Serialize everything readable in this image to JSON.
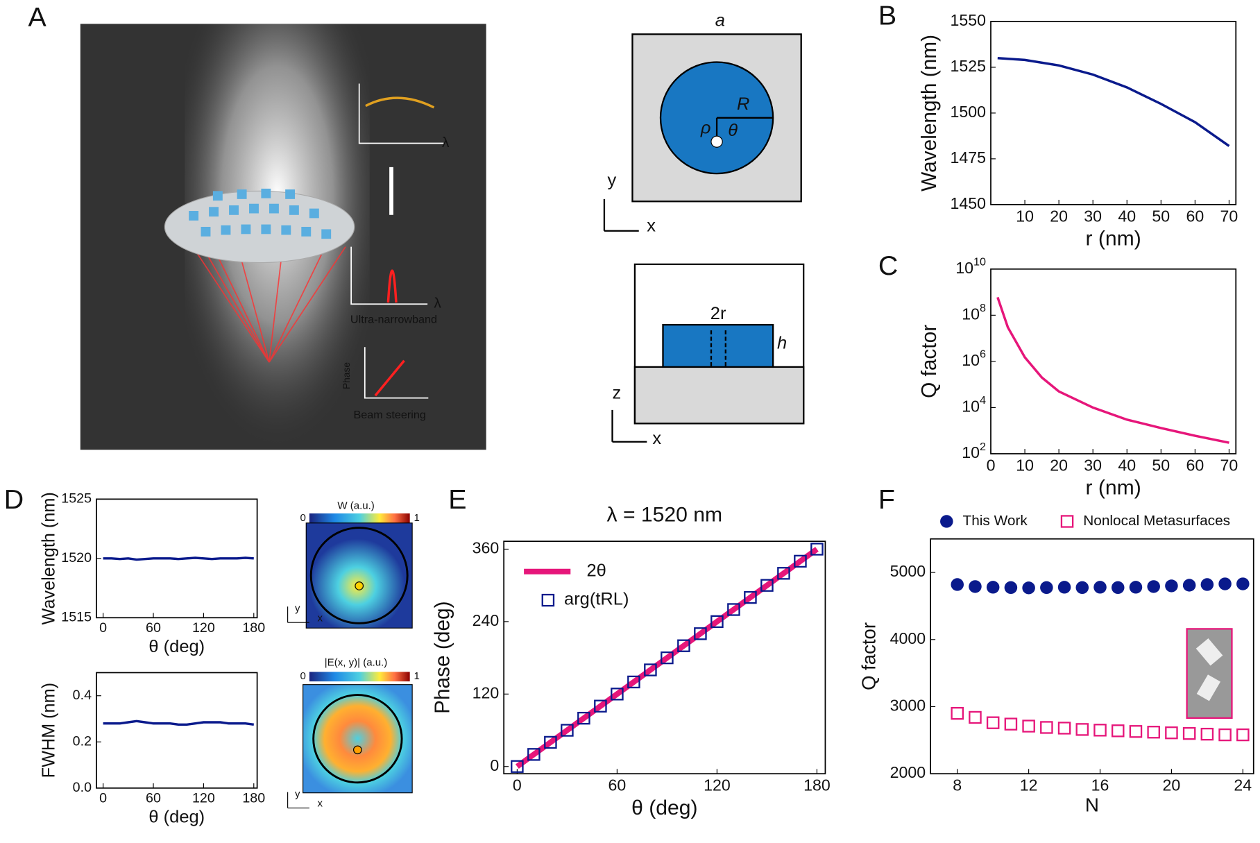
{
  "panels": {
    "a": "A",
    "b": "B",
    "c": "C",
    "d": "D",
    "e": "E",
    "f": "F"
  },
  "illustration": {
    "lambda1": "λ",
    "lambda2": "λ",
    "narrow": "Ultra-narrowband",
    "phase": "Phase",
    "steer": "Beam steering"
  },
  "schematic": {
    "a": "a",
    "R": "R",
    "rho": "ρ",
    "theta": "θ",
    "y1": "y",
    "x1": "x",
    "tworr": "2r",
    "h": "h",
    "z": "z",
    "x2": "x"
  },
  "maps": {
    "w": "W (a.u.)",
    "w0": "0",
    "w1": "1",
    "e": "|E(x, y)| (a.u.)",
    "e0": "0",
    "e1": "1",
    "y1": "y",
    "x1": "x",
    "y2": "y",
    "x2": "x"
  },
  "chart_data": [
    {
      "type": "line",
      "xlabel": "r (nm)",
      "ylabel": "Wavelength (nm)",
      "xlim": [
        0,
        72
      ],
      "ylim": [
        1450,
        1550
      ],
      "xticks": [
        10,
        20,
        30,
        40,
        50,
        60,
        70
      ],
      "yticks": [
        1450,
        1475,
        1500,
        1525,
        1550
      ],
      "series": [
        {
          "color": "#0a1a8c",
          "marker": "line",
          "x": [
            2,
            10,
            20,
            30,
            40,
            50,
            60,
            70
          ],
          "values": [
            1530,
            1529,
            1526,
            1521,
            1514,
            1505,
            1495,
            1482
          ]
        }
      ]
    },
    {
      "type": "line",
      "xlabel": "r (nm)",
      "ylabel": "Q factor",
      "log_y": true,
      "xlim": [
        0,
        72
      ],
      "ylim": [
        100,
        10000000000
      ],
      "xticks": [
        0,
        10,
        20,
        30,
        40,
        50,
        60,
        70
      ],
      "yticks": [
        {
          "value": 100,
          "label": "10^2"
        },
        {
          "value": 10000,
          "label": "10^4"
        },
        {
          "value": 1000000,
          "label": "10^6"
        },
        {
          "value": 100000000,
          "label": "10^8"
        },
        {
          "value": 10000000000,
          "label": "10^10"
        }
      ],
      "series": [
        {
          "color": "#e6167a",
          "marker": "line",
          "x": [
            2,
            5,
            10,
            15,
            20,
            30,
            40,
            50,
            60,
            70
          ],
          "values": [
            600000000,
            30000000,
            1500000,
            200000,
            50000,
            10000,
            3000,
            1300,
            600,
            300
          ]
        }
      ]
    },
    {
      "type": "line",
      "xlabel": "θ (deg)",
      "ylabel": "Wavelength (nm)",
      "xlim": [
        -8,
        184
      ],
      "ylim": [
        1515,
        1525
      ],
      "xticks": [
        0,
        60,
        120,
        180
      ],
      "yticks": [
        1515,
        1520,
        1525
      ],
      "series": [
        {
          "color": "#0a1a8c",
          "marker": "line",
          "x": [
            0,
            10,
            20,
            30,
            40,
            50,
            60,
            70,
            80,
            90,
            100,
            110,
            120,
            130,
            140,
            150,
            160,
            170,
            180
          ],
          "values": [
            1520,
            1520,
            1519.95,
            1520,
            1519.9,
            1519.95,
            1520,
            1520,
            1520,
            1519.95,
            1520,
            1520.05,
            1520,
            1519.95,
            1520,
            1520,
            1520,
            1520.05,
            1520
          ]
        }
      ]
    },
    {
      "type": "line",
      "xlabel": "θ (deg)",
      "ylabel": "FWHM (nm)",
      "xlim": [
        -8,
        184
      ],
      "ylim": [
        0,
        0.5
      ],
      "xticks": [
        0,
        60,
        120,
        180
      ],
      "yticks": [
        {
          "value": 0,
          "label": "0.0"
        },
        0.2,
        0.4
      ],
      "series": [
        {
          "color": "#0a1a8c",
          "marker": "line",
          "x": [
            0,
            10,
            20,
            30,
            40,
            50,
            60,
            70,
            80,
            90,
            100,
            110,
            120,
            130,
            140,
            150,
            160,
            170,
            180
          ],
          "values": [
            0.28,
            0.28,
            0.28,
            0.285,
            0.29,
            0.285,
            0.28,
            0.28,
            0.28,
            0.275,
            0.275,
            0.28,
            0.285,
            0.285,
            0.285,
            0.28,
            0.28,
            0.28,
            0.275
          ]
        }
      ]
    },
    {
      "type": "line",
      "title": "λ = 1520 nm",
      "xlabel": "θ (deg)",
      "ylabel": "Phase (deg)",
      "xlim": [
        -8,
        185
      ],
      "ylim": [
        -12,
        373
      ],
      "xticks": [
        0,
        60,
        120,
        180
      ],
      "yticks": [
        0,
        120,
        240,
        360
      ],
      "legend": "upper left",
      "series": [
        {
          "name": "2θ",
          "color": "#e6167a",
          "marker": "line",
          "x": [
            0,
            180
          ],
          "values": [
            0,
            360
          ]
        },
        {
          "name": "arg(tRL)",
          "color": "#0a1a8c",
          "marker": "square",
          "x": [
            0,
            10,
            20,
            30,
            40,
            50,
            60,
            70,
            80,
            90,
            100,
            110,
            120,
            130,
            140,
            150,
            160,
            170,
            180
          ],
          "values": [
            0,
            20,
            40,
            60,
            80,
            100,
            120,
            140,
            160,
            180,
            200,
            220,
            240,
            260,
            280,
            300,
            320,
            340,
            360
          ]
        }
      ]
    },
    {
      "type": "scatter",
      "xlabel": "N",
      "ylabel": "Q factor",
      "xlim": [
        6.5,
        24.6
      ],
      "ylim": [
        2000,
        5500
      ],
      "xticks": [
        8,
        12,
        16,
        20,
        24
      ],
      "yticks": [
        2000,
        3000,
        4000,
        5000
      ],
      "legend": "top",
      "series": [
        {
          "name": "This Work",
          "color": "#0a1a8c",
          "marker": "circle",
          "x": [
            8,
            9,
            10,
            11,
            12,
            13,
            14,
            15,
            16,
            17,
            18,
            19,
            20,
            21,
            22,
            23,
            24
          ],
          "values": [
            4820,
            4790,
            4780,
            4775,
            4770,
            4775,
            4780,
            4775,
            4780,
            4775,
            4780,
            4790,
            4800,
            4810,
            4820,
            4830,
            4830
          ]
        },
        {
          "name": "Nonlocal Metasurfaces",
          "color": "#e6167a",
          "marker": "square",
          "x": [
            8,
            9,
            10,
            11,
            12,
            13,
            14,
            15,
            16,
            17,
            18,
            19,
            20,
            21,
            22,
            23,
            24
          ],
          "values": [
            2900,
            2840,
            2760,
            2740,
            2710,
            2690,
            2680,
            2660,
            2650,
            2640,
            2630,
            2620,
            2610,
            2600,
            2590,
            2580,
            2580
          ]
        }
      ]
    }
  ]
}
